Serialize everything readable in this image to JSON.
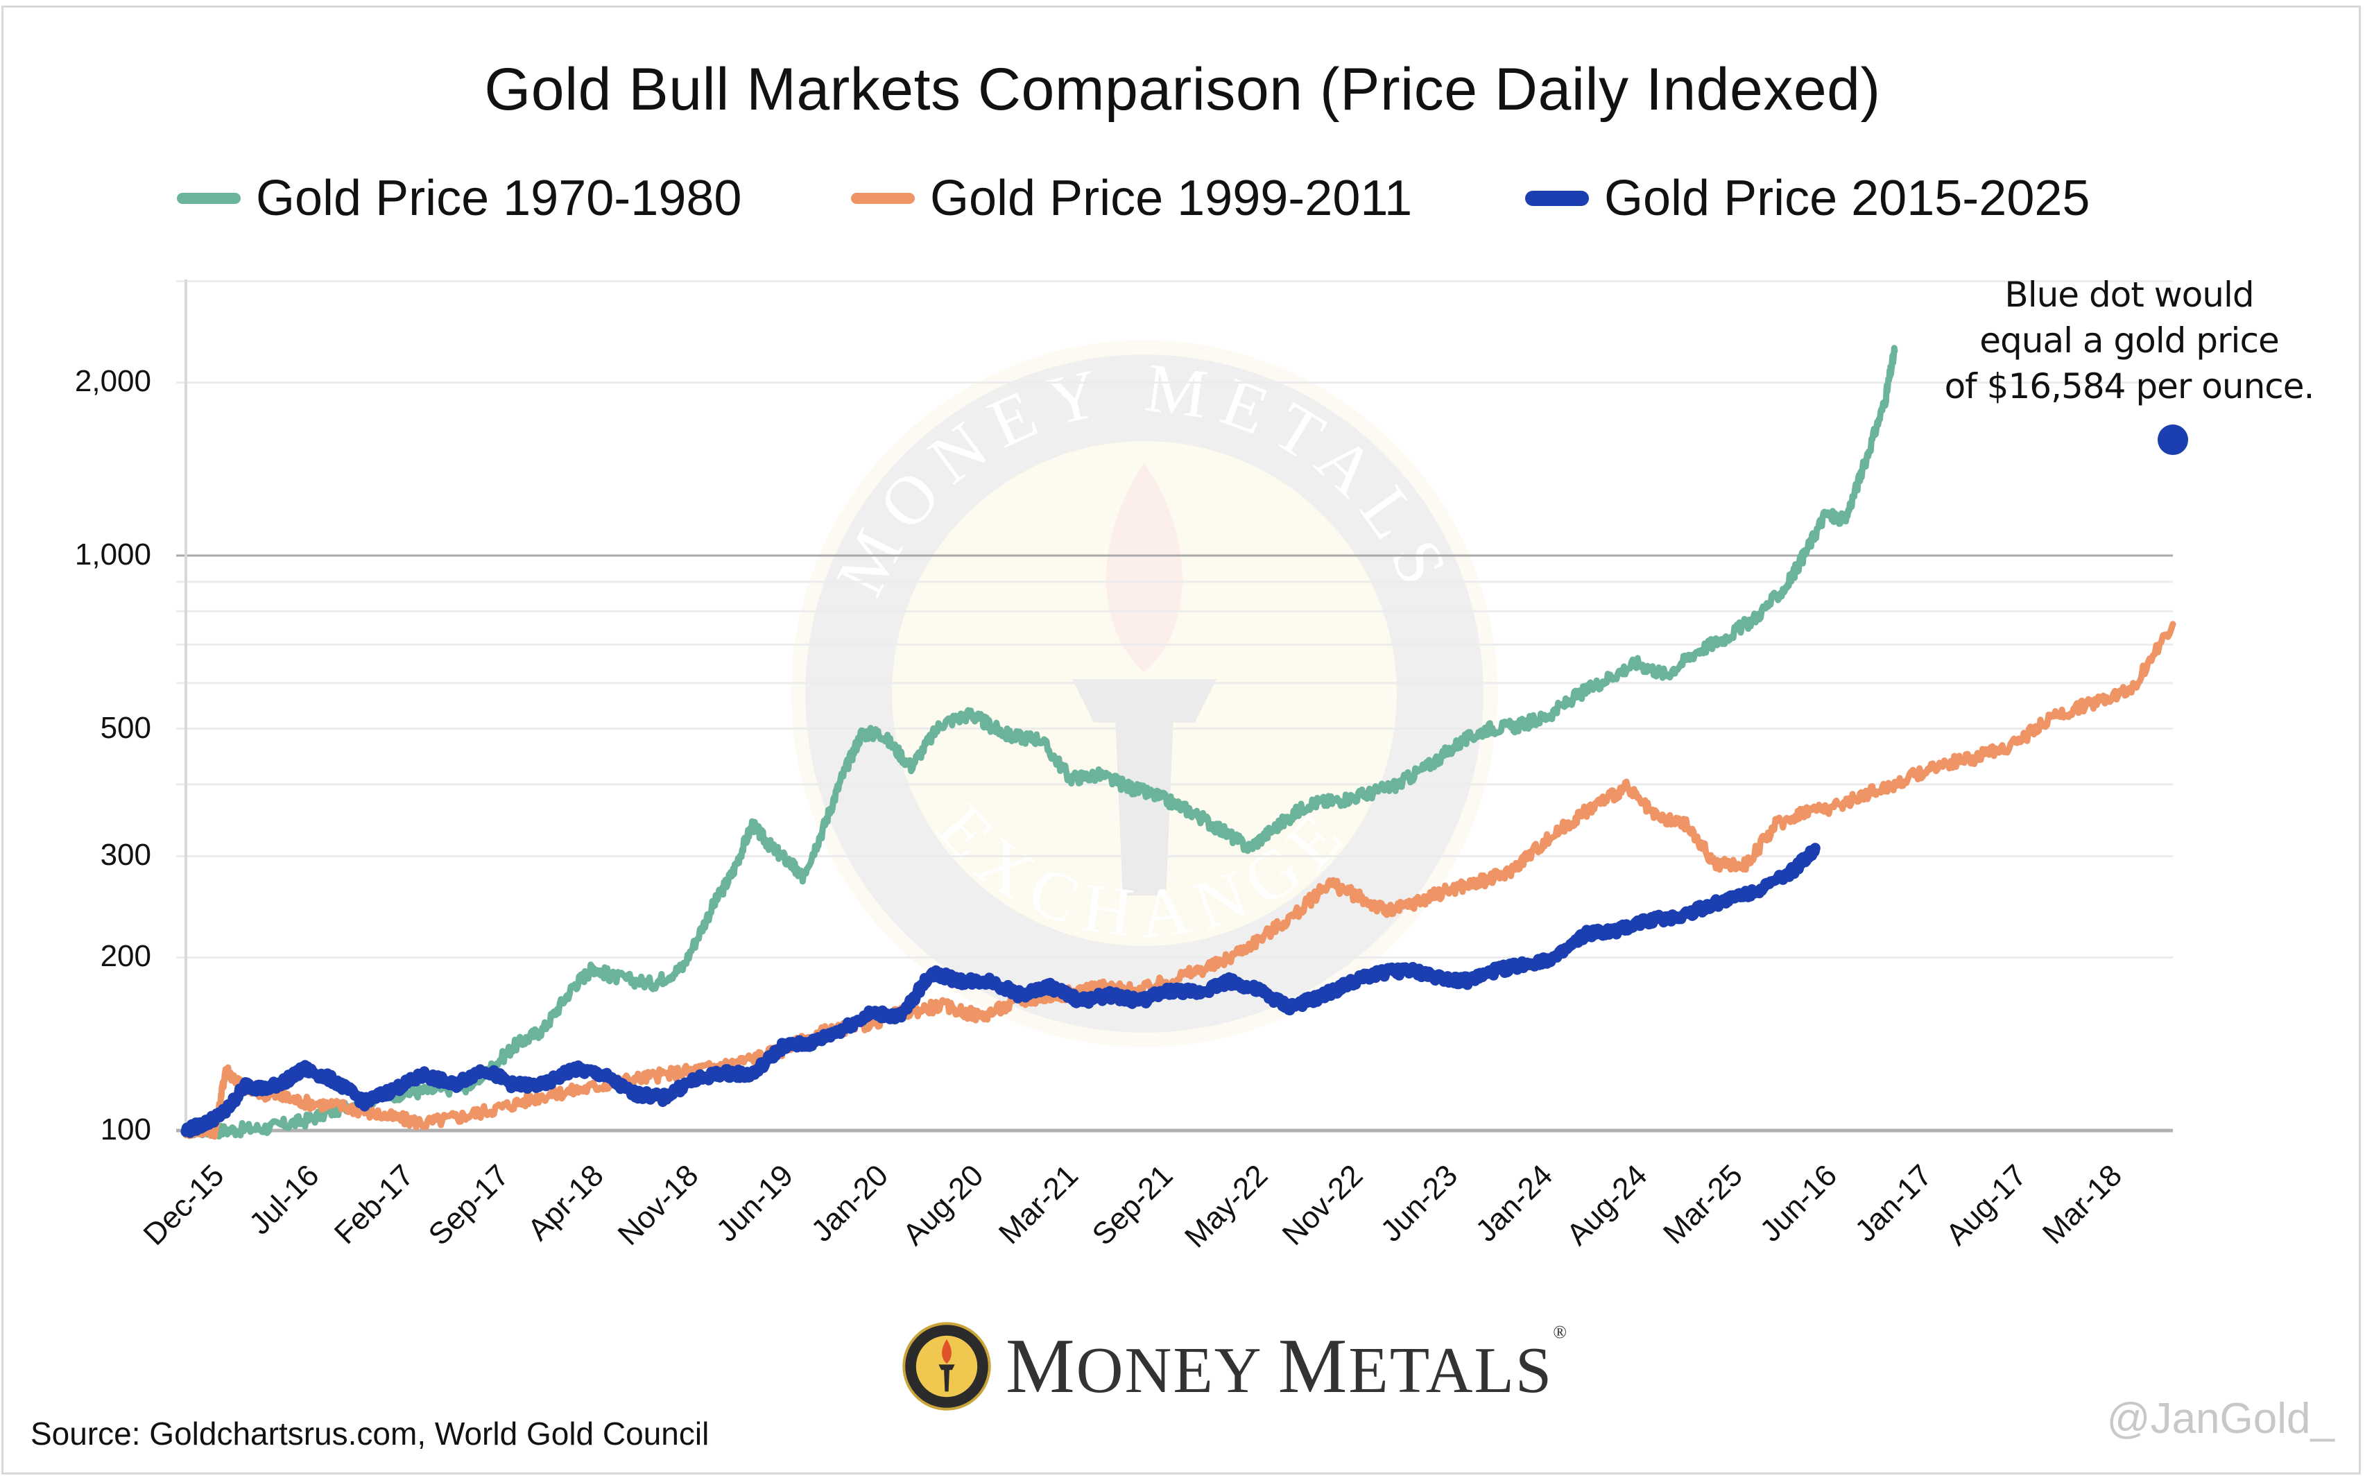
{
  "chart_data": {
    "type": "line",
    "title": "Gold Bull Markets Comparison (Price Daily Indexed)",
    "xlabel": "",
    "ylabel": "",
    "y_scale": "log",
    "ylim": [
      100,
      3000
    ],
    "y_ticks": [
      100,
      200,
      300,
      500,
      1000,
      2000
    ],
    "y_tick_labels": [
      "100",
      "200",
      "300",
      "500",
      "1,000",
      "2,000"
    ],
    "y_minor_gridlines": [
      400,
      600,
      700,
      800,
      900,
      3000
    ],
    "grid": true,
    "legend_position": "top",
    "x_ticks_labels": [
      "Dec-15",
      "Jul-16",
      "Feb-17",
      "Sep-17",
      "Apr-18",
      "Nov-18",
      "Jun-19",
      "Jan-20",
      "Aug-20",
      "Mar-21",
      "Sep-21",
      "May-22",
      "Nov-22",
      "Jun-23",
      "Jan-24",
      "Aug-24",
      "Mar-25",
      "Jun-16",
      "Jan-17",
      "Aug-17",
      "Mar-18"
    ],
    "x_range_index": [
      0,
      20
    ],
    "series": [
      {
        "name": "Gold Price 1970-1980",
        "color": "#6bb39a",
        "x": [
          0,
          0.4,
          0.8,
          1.2,
          1.6,
          2.0,
          2.4,
          2.8,
          3.0,
          3.3,
          3.6,
          3.9,
          4.1,
          4.3,
          4.7,
          5.0,
          5.3,
          5.5,
          5.7,
          5.9,
          6.1,
          6.2,
          6.4,
          6.6,
          6.8,
          7.0,
          7.3,
          7.6,
          7.9,
          8.1,
          8.3,
          8.6,
          8.9,
          9.2,
          9.5,
          9.8,
          10.1,
          10.4,
          10.7,
          11.0,
          11.3,
          11.6,
          11.9,
          12.2,
          12.5,
          12.8,
          13.1,
          13.4,
          13.7,
          14.0,
          14.3,
          14.6,
          14.9,
          15.2,
          15.5,
          15.8,
          16.1,
          16.3,
          16.5,
          16.7,
          16.9,
          17.1,
          17.2
        ],
        "values": [
          100,
          100,
          101,
          104,
          110,
          115,
          117,
          119,
          125,
          140,
          150,
          178,
          192,
          185,
          180,
          192,
          245,
          280,
          340,
          310,
          290,
          275,
          330,
          410,
          490,
          490,
          430,
          510,
          530,
          505,
          485,
          480,
          410,
          415,
          395,
          380,
          360,
          335,
          310,
          340,
          370,
          375,
          385,
          400,
          430,
          470,
          500,
          505,
          525,
          570,
          610,
          650,
          620,
          680,
          720,
          780,
          880,
          1010,
          1180,
          1150,
          1450,
          1850,
          2270
        ]
      },
      {
        "name": "Gold Price 1999-2011",
        "color": "#ef9465",
        "x": [
          0,
          0.3,
          0.4,
          0.6,
          0.9,
          1.2,
          1.6,
          2.0,
          2.4,
          2.8,
          3.2,
          3.6,
          4.0,
          4.4,
          4.8,
          5.2,
          5.6,
          6.0,
          6.4,
          6.8,
          7.2,
          7.6,
          8.0,
          8.4,
          8.8,
          9.2,
          9.6,
          10.0,
          10.4,
          10.8,
          11.2,
          11.5,
          11.8,
          12.1,
          12.4,
          12.7,
          13.0,
          13.3,
          13.6,
          13.9,
          14.2,
          14.5,
          14.8,
          15.1,
          15.4,
          15.7,
          16.0,
          16.3,
          16.6,
          16.9,
          17.2,
          17.6,
          18.0,
          18.4,
          18.8,
          19.2,
          19.6,
          20.0
        ],
        "values": [
          100,
          100,
          128,
          118,
          115,
          112,
          110,
          106,
          103,
          106,
          110,
          115,
          118,
          122,
          125,
          128,
          132,
          138,
          148,
          152,
          160,
          165,
          158,
          168,
          172,
          178,
          175,
          185,
          195,
          215,
          240,
          270,
          255,
          240,
          250,
          262,
          270,
          280,
          310,
          340,
          370,
          395,
          350,
          340,
          290,
          290,
          340,
          360,
          365,
          385,
          400,
          430,
          445,
          470,
          525,
          555,
          590,
          760
        ]
      },
      {
        "name": "Gold Price 2015-2025",
        "color": "#1b3fb0",
        "x": [
          0,
          0.2,
          0.4,
          0.6,
          0.8,
          1.0,
          1.2,
          1.5,
          1.8,
          2.1,
          2.4,
          2.7,
          3.0,
          3.3,
          3.6,
          3.9,
          4.2,
          4.5,
          4.8,
          5.1,
          5.4,
          5.7,
          6.0,
          6.3,
          6.6,
          6.9,
          7.2,
          7.5,
          7.8,
          8.1,
          8.4,
          8.7,
          9.0,
          9.3,
          9.6,
          9.9,
          10.2,
          10.5,
          10.8,
          11.1,
          11.4,
          11.7,
          12.0,
          12.3,
          12.6,
          12.9,
          13.2,
          13.5,
          13.8,
          14.1,
          14.4,
          14.7,
          15.0,
          15.3,
          15.6,
          15.9,
          16.2,
          16.4
        ],
        "values": [
          100,
          103,
          108,
          120,
          118,
          122,
          128,
          122,
          112,
          118,
          125,
          120,
          128,
          120,
          120,
          128,
          125,
          116,
          114,
          122,
          126,
          125,
          140,
          142,
          150,
          160,
          158,
          188,
          182,
          182,
          172,
          178,
          168,
          172,
          168,
          175,
          174,
          182,
          175,
          164,
          170,
          180,
          188,
          190,
          185,
          182,
          190,
          195,
          200,
          220,
          222,
          232,
          235,
          245,
          255,
          265,
          285,
          310
        ]
      }
    ],
    "annotation_point": {
      "x_index": 20,
      "value": 1590,
      "color": "#1b3fb0",
      "text": [
        "Blue dot would",
        "equal a gold price",
        "of $16,584 per ounce."
      ]
    }
  },
  "legend": [
    {
      "label": "Gold Price 1970-1980",
      "color": "#6bb39a"
    },
    {
      "label": "Gold Price 1999-2011",
      "color": "#ef9465"
    },
    {
      "label": "Gold Price 2015-2025",
      "color": "#1b3fb0"
    }
  ],
  "annotation": {
    "line1": "Blue dot would",
    "line2": "equal a gold price",
    "line3": "of $16,584 per ounce."
  },
  "footer": {
    "source": "Source: Goldchartsrus.com, World Gold Council",
    "logo_text_first": "M",
    "logo_text_rest1": "ONEY ",
    "logo_text_second": "M",
    "logo_text_rest2": "ETALS",
    "logo_reg": "®",
    "handle": "@JanGold_"
  },
  "watermark": {
    "ring_top": "MONEY METALS",
    "ring_bottom": "EXCHANGE"
  }
}
